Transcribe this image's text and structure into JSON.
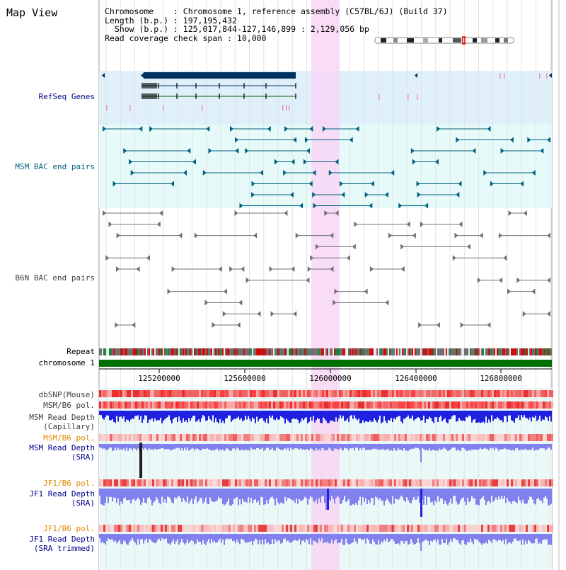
{
  "title": "Map View",
  "info": {
    "line1": "Chromosome    : Chromosome 1, reference assembly (C57BL/6J) (Build 37)",
    "line2": "Length (b.p.) : 197,195,432",
    "line3": "  Show (b.p.) : 125,017,844-127,146,899 : 2,129,056 bp",
    "line4": "Read coverage check span : 10,000"
  },
  "tracks": {
    "refseq": "RefSeq Genes",
    "msm_bac": "MSM BAC end pairs",
    "b6n_bac": "B6N BAC end pairs",
    "repeat": "Repeat",
    "chromosome": "chromosome 1",
    "dbsnp": "dbSNP(Mouse)",
    "msm_pol1": "MSM/B6 pol.",
    "msm_cap_1": "MSM Read Depth",
    "msm_cap_2": "(Capillary)",
    "msm_pol2": "MSM/B6 pol.",
    "msm_sra_1": "MSM Read Depth",
    "msm_sra_2": "(SRA)",
    "jf1_pol1": "JF1/B6 pol.",
    "jf1_sra_1": "JF1 Read Depth",
    "jf1_sra_2": "(SRA)",
    "jf1_pol2": "JF1/B6 pol.",
    "jf1_trim_1": "JF1 Read Depth",
    "jf1_trim_2": "(SRA trimmed)"
  },
  "axis": {
    "ticks": [
      "125200000",
      "125600000",
      "126000000",
      "126400000",
      "126800000"
    ]
  },
  "colors": {
    "refseq_bg": "#dff0fa",
    "msm_bac_bg": "#e6fafa",
    "depth_bg": "#eaf8f8",
    "highlight": "#f8d6f4",
    "chromosome": "#007000",
    "gene_dark": "#003060",
    "msm_line": "#006080",
    "b6n_line": "#707070",
    "depth_blue": "#2020e0",
    "depth_light": "#8080ee"
  }
}
